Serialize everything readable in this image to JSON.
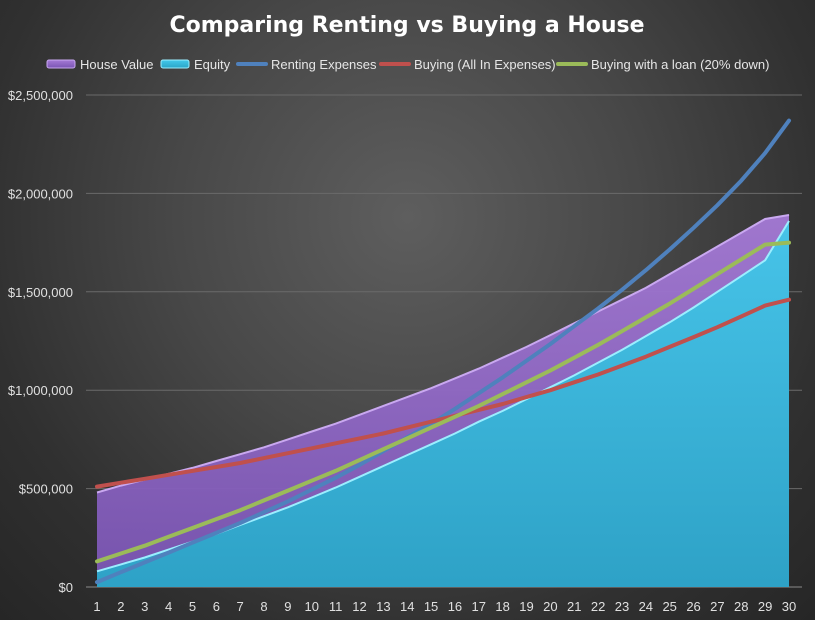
{
  "chart_data": {
    "type": "area",
    "title": "Comparing Renting vs Buying a House",
    "xlabel": "",
    "ylabel": "",
    "x": [
      1,
      2,
      3,
      4,
      5,
      6,
      7,
      8,
      9,
      10,
      11,
      12,
      13,
      14,
      15,
      16,
      17,
      18,
      19,
      20,
      21,
      22,
      23,
      24,
      25,
      26,
      27,
      28,
      29,
      30
    ],
    "xlim": [
      1,
      30
    ],
    "ylim": [
      0,
      2500000
    ],
    "yticks": [
      0,
      500000,
      1000000,
      1500000,
      2000000,
      2500000
    ],
    "ytick_labels": [
      "$0",
      "$500,000",
      "$1,000,000",
      "$1,500,000",
      "$2,000,000",
      "$2,500,000"
    ],
    "grid": true,
    "legend_position": "top",
    "series": [
      {
        "name": "House Value",
        "kind": "area",
        "color": "#9b6fd0",
        "values": [
          480000,
          515000,
          545000,
          575000,
          605000,
          640000,
          675000,
          710000,
          750000,
          790000,
          830000,
          875000,
          920000,
          965000,
          1010000,
          1060000,
          1110000,
          1165000,
          1220000,
          1280000,
          1340000,
          1400000,
          1460000,
          1520000,
          1590000,
          1660000,
          1730000,
          1800000,
          1870000,
          1890000
        ]
      },
      {
        "name": "Equity",
        "kind": "area",
        "color": "#38c0e0",
        "values": [
          80000,
          115000,
          150000,
          190000,
          230000,
          270000,
          315000,
          360000,
          405000,
          455000,
          505000,
          560000,
          615000,
          670000,
          725000,
          780000,
          840000,
          895000,
          955000,
          1015000,
          1075000,
          1140000,
          1205000,
          1275000,
          1345000,
          1420000,
          1500000,
          1580000,
          1660000,
          1860000
        ]
      },
      {
        "name": "Renting Expenses",
        "kind": "line",
        "color": "#4f81bd",
        "values": [
          25000,
          75000,
          125000,
          175000,
          225000,
          275000,
          325000,
          380000,
          435000,
          495000,
          555000,
          620000,
          690000,
          760000,
          830000,
          905000,
          985000,
          1065000,
          1150000,
          1235000,
          1325000,
          1415000,
          1510000,
          1610000,
          1715000,
          1825000,
          1940000,
          2065000,
          2205000,
          2370000
        ]
      },
      {
        "name": "Buying (All In Expenses)",
        "kind": "line",
        "color": "#c0504d",
        "values": [
          510000,
          530000,
          550000,
          570000,
          590000,
          610000,
          630000,
          655000,
          680000,
          705000,
          730000,
          755000,
          780000,
          810000,
          840000,
          870000,
          900000,
          930000,
          965000,
          1000000,
          1040000,
          1080000,
          1125000,
          1170000,
          1220000,
          1270000,
          1320000,
          1375000,
          1430000,
          1460000
        ]
      },
      {
        "name": "Buying with a loan (20% down)",
        "kind": "line",
        "color": "#9bbb59",
        "values": [
          130000,
          170000,
          210000,
          255000,
          300000,
          345000,
          390000,
          440000,
          490000,
          540000,
          590000,
          645000,
          700000,
          755000,
          810000,
          865000,
          920000,
          980000,
          1040000,
          1100000,
          1165000,
          1230000,
          1300000,
          1370000,
          1440000,
          1515000,
          1590000,
          1665000,
          1740000,
          1750000
        ]
      }
    ]
  }
}
